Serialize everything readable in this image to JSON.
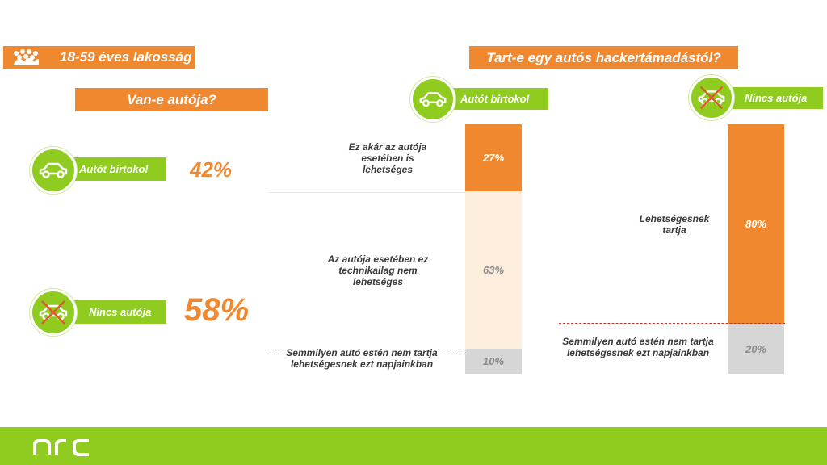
{
  "population": {
    "label": "18-59 éves lakosság"
  },
  "left": {
    "question": "Van-e autója?",
    "owns": {
      "label": "Autót birtokol",
      "value": "42%"
    },
    "none": {
      "label": "Nincs autója",
      "value": "58%"
    }
  },
  "right": {
    "question": "Tart-e egy autós hackertámadástól?",
    "owners_tag": "Autót birtokol",
    "nonowners_tag": "Nincs autója"
  },
  "chart_data": [
    {
      "type": "bar",
      "categories": [
        "Autót birtokol"
      ],
      "series": [
        {
          "name": "Ez akár az autója esetében is lehetséges",
          "values": [
            27
          ]
        },
        {
          "name": "Az autója esetében ez technikailag nem lehetséges",
          "values": [
            63
          ]
        },
        {
          "name": "Semmilyen autó estén nem tartja lehetségesnek ezt napjainkban",
          "values": [
            10
          ]
        }
      ],
      "value_labels": [
        "27%",
        "63%",
        "10%"
      ],
      "ylim": [
        0,
        100
      ]
    },
    {
      "type": "bar",
      "categories": [
        "Nincs autója"
      ],
      "series": [
        {
          "name": "Lehetségesnek tartja",
          "values": [
            80
          ]
        },
        {
          "name": "Semmilyen autó estén nem tartja lehetségesnek ezt napjainkban",
          "values": [
            20
          ]
        }
      ],
      "value_labels": [
        "80%",
        "20%"
      ],
      "ylim": [
        0,
        100
      ]
    }
  ],
  "footer": {
    "logo": "nrc"
  },
  "colors": {
    "orange": "#f0882f",
    "green": "#8fcc1f",
    "light_orange": "#fdeede",
    "gray": "#d6d6d6"
  },
  "icons": [
    "people-group-icon",
    "car-icon",
    "crossed-car-icon"
  ]
}
